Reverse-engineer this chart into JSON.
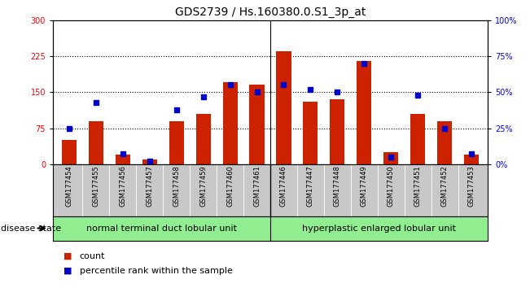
{
  "title": "GDS2739 / Hs.160380.0.S1_3p_at",
  "samples": [
    "GSM177454",
    "GSM177455",
    "GSM177456",
    "GSM177457",
    "GSM177458",
    "GSM177459",
    "GSM177460",
    "GSM177461",
    "GSM177446",
    "GSM177447",
    "GSM177448",
    "GSM177449",
    "GSM177450",
    "GSM177451",
    "GSM177452",
    "GSM177453"
  ],
  "counts": [
    50,
    90,
    20,
    10,
    90,
    105,
    170,
    165,
    235,
    130,
    135,
    215,
    25,
    105,
    90,
    20
  ],
  "percentiles": [
    25,
    43,
    7,
    2,
    38,
    47,
    55,
    50,
    55,
    52,
    50,
    70,
    5,
    48,
    25,
    7
  ],
  "bar_color": "#cc2200",
  "marker_color": "#0000cc",
  "left_ylim": [
    0,
    300
  ],
  "right_ylim": [
    0,
    100
  ],
  "left_yticks": [
    0,
    75,
    150,
    225,
    300
  ],
  "right_yticks": [
    0,
    25,
    50,
    75,
    100
  ],
  "right_yticklabels": [
    "0%",
    "25%",
    "50%",
    "75%",
    "100%"
  ],
  "group1_label": "normal terminal duct lobular unit",
  "group2_label": "hyperplastic enlarged lobular unit",
  "disease_state_label": "disease state",
  "legend_count_label": "count",
  "legend_percentile_label": "percentile rank within the sample",
  "group_bg_color": "#90ee90",
  "xlab_bg_color": "#c8c8c8",
  "title_fontsize": 10,
  "tick_fontsize": 7,
  "sample_fontsize": 6,
  "group_fontsize": 8,
  "legend_fontsize": 8,
  "gridline_values": [
    75,
    150,
    225
  ]
}
